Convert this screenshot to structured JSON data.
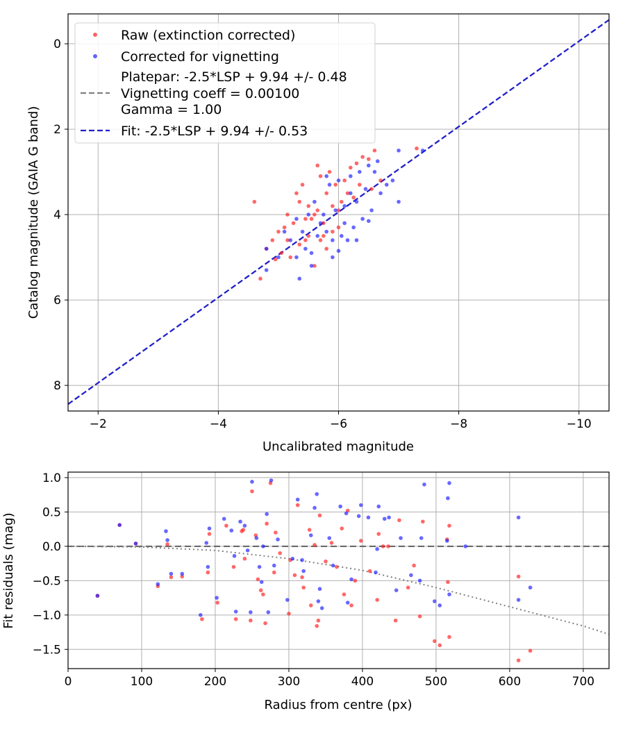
{
  "chart_data": [
    {
      "type": "scatter",
      "xlabel": "Uncalibrated magnitude",
      "ylabel": "Catalog magnitude (GAIA G band)",
      "x_inverted": true,
      "y_inverted": true,
      "xlim": [
        -1.5,
        -10.5
      ],
      "ylim": [
        8.6,
        -0.7
      ],
      "xticks": [
        -2,
        -4,
        -6,
        -8,
        -10
      ],
      "xtick_labels": [
        "−2",
        "−4",
        "−6",
        "−8",
        "−10"
      ],
      "yticks": [
        0,
        2,
        4,
        6,
        8
      ],
      "ytick_labels": [
        "0",
        "2",
        "4",
        "6",
        "8"
      ],
      "grid": true,
      "legend_position": "top-left",
      "legend": {
        "raw": "Raw (extinction corrected)",
        "corrected": "Corrected for vignetting",
        "platepar_line1": "Platepar: -2.5*LSP + 9.94 +/- 0.48",
        "platepar_line2": "Vignetting coeff = 0.00100",
        "platepar_line3": "Gamma = 1.00",
        "fit": "Fit: -2.5*LSP + 9.94 +/- 0.53"
      },
      "lines": [
        {
          "name": "Platepar",
          "slope": 1.0,
          "intercept": 9.94,
          "color": "#808080",
          "style": "dashed"
        },
        {
          "name": "Fit",
          "slope": 1.0,
          "intercept": 9.94,
          "color": "#2020d0",
          "style": "dashed"
        }
      ],
      "series": [
        {
          "name": "Raw (extinction corrected)",
          "color": "#ff2020",
          "points": [
            [
              -4.6,
              3.7
            ],
            [
              -4.8,
              4.8
            ],
            [
              -4.9,
              4.6
            ],
            [
              -5.0,
              4.4
            ],
            [
              -5.05,
              4.9
            ],
            [
              -5.1,
              4.3
            ],
            [
              -5.15,
              4.0
            ],
            [
              -5.2,
              5.0
            ],
            [
              -5.25,
              4.2
            ],
            [
              -5.3,
              3.5
            ],
            [
              -5.35,
              4.7
            ],
            [
              -5.4,
              3.3
            ],
            [
              -5.45,
              4.6
            ],
            [
              -5.5,
              3.8
            ],
            [
              -5.5,
              4.5
            ],
            [
              -5.55,
              4.1
            ],
            [
              -5.6,
              4.0
            ],
            [
              -5.6,
              5.2
            ],
            [
              -5.65,
              3.9
            ],
            [
              -5.7,
              3.1
            ],
            [
              -5.7,
              4.6
            ],
            [
              -5.75,
              4.2
            ],
            [
              -5.8,
              3.5
            ],
            [
              -5.8,
              4.8
            ],
            [
              -5.85,
              3.0
            ],
            [
              -5.9,
              4.4
            ],
            [
              -5.95,
              3.3
            ],
            [
              -6.0,
              3.9
            ],
            [
              -6.0,
              4.3
            ],
            [
              -6.05,
              3.7
            ],
            [
              -6.1,
              3.2
            ],
            [
              -6.15,
              3.5
            ],
            [
              -6.2,
              2.9
            ],
            [
              -6.25,
              3.6
            ],
            [
              -6.3,
              2.8
            ],
            [
              -6.35,
              3.3
            ],
            [
              -6.4,
              2.65
            ],
            [
              -6.5,
              2.7
            ],
            [
              -6.55,
              3.4
            ],
            [
              -6.6,
              2.5
            ],
            [
              -6.7,
              3.2
            ],
            [
              -7.3,
              2.45
            ],
            [
              -5.15,
              4.6
            ],
            [
              -5.35,
              3.7
            ],
            [
              -5.65,
              2.85
            ],
            [
              -5.9,
              3.8
            ],
            [
              -5.45,
              4.1
            ],
            [
              -5.75,
              4.5
            ],
            [
              -4.7,
              5.5
            ],
            [
              -4.95,
              5.05
            ]
          ]
        },
        {
          "name": "Corrected for vignetting",
          "color": "#2020ff",
          "points": [
            [
              -4.8,
              5.3
            ],
            [
              -5.0,
              5.0
            ],
            [
              -5.1,
              4.4
            ],
            [
              -5.2,
              4.6
            ],
            [
              -5.3,
              4.1
            ],
            [
              -5.35,
              5.5
            ],
            [
              -5.4,
              4.4
            ],
            [
              -5.45,
              4.8
            ],
            [
              -5.5,
              4.0
            ],
            [
              -5.55,
              4.9
            ],
            [
              -5.6,
              3.7
            ],
            [
              -5.65,
              4.5
            ],
            [
              -5.7,
              4.2
            ],
            [
              -5.75,
              4.0
            ],
            [
              -5.8,
              4.4
            ],
            [
              -5.85,
              3.3
            ],
            [
              -5.9,
              4.6
            ],
            [
              -5.95,
              3.9
            ],
            [
              -6.0,
              3.2
            ],
            [
              -6.05,
              4.5
            ],
            [
              -6.1,
              3.8
            ],
            [
              -6.15,
              4.6
            ],
            [
              -6.2,
              3.5
            ],
            [
              -6.25,
              4.3
            ],
            [
              -6.3,
              3.7
            ],
            [
              -6.35,
              3.0
            ],
            [
              -6.4,
              4.1
            ],
            [
              -6.45,
              3.4
            ],
            [
              -6.5,
              2.85
            ],
            [
              -6.55,
              3.9
            ],
            [
              -6.6,
              3.0
            ],
            [
              -6.7,
              3.5
            ],
            [
              -6.8,
              3.3
            ],
            [
              -6.9,
              3.2
            ],
            [
              -7.0,
              3.7
            ],
            [
              -7.0,
              2.5
            ],
            [
              -7.4,
              2.5
            ],
            [
              -6.65,
              2.75
            ],
            [
              -6.1,
              4.2
            ],
            [
              -6.2,
              3.1
            ],
            [
              -5.55,
              5.2
            ],
            [
              -5.9,
              5.0
            ],
            [
              -6.3,
              4.6
            ],
            [
              -6.5,
              4.15
            ],
            [
              -5.3,
              5.0
            ],
            [
              -4.8,
              4.8
            ],
            [
              -5.8,
              3.1
            ],
            [
              -6.0,
              4.85
            ]
          ]
        }
      ]
    },
    {
      "type": "scatter",
      "xlabel": "Radius from centre (px)",
      "ylabel": "Fit residuals (mag)",
      "xlim": [
        0,
        735
      ],
      "ylim": [
        -1.78,
        1.08
      ],
      "xticks": [
        0,
        100,
        200,
        300,
        400,
        500,
        600,
        700
      ],
      "xtick_labels": [
        "0",
        "100",
        "200",
        "300",
        "400",
        "500",
        "600",
        "700"
      ],
      "yticks": [
        1.0,
        0.5,
        0.0,
        -0.5,
        -1.0,
        -1.5
      ],
      "ytick_labels": [
        "1.0",
        "0.5",
        "0.0",
        "−0.5",
        "−1.0",
        "−1.5"
      ],
      "grid": true,
      "reference_lines": [
        {
          "name": "zero",
          "y": 0.0,
          "color": "#606060",
          "style": "dashed"
        },
        {
          "name": "vignetting model",
          "color": "#808080",
          "style": "dotted",
          "points": [
            [
              0,
              0.0
            ],
            [
              100,
              -0.01
            ],
            [
              200,
              -0.06
            ],
            [
              300,
              -0.18
            ],
            [
              400,
              -0.35
            ],
            [
              500,
              -0.6
            ],
            [
              600,
              -0.88
            ],
            [
              700,
              -1.16
            ],
            [
              735,
              -1.28
            ]
          ]
        }
      ],
      "series": [
        {
          "name": "Raw (extinction corrected)",
          "color": "#ff2020",
          "points": [
            [
              40,
              -0.72
            ],
            [
              70,
              0.31
            ],
            [
              92,
              0.04
            ],
            [
              122,
              -0.58
            ],
            [
              135,
              0.03
            ],
            [
              140,
              -0.45
            ],
            [
              155,
              -0.44
            ],
            [
              182,
              -1.06
            ],
            [
              190,
              -0.38
            ],
            [
              192,
              0.18
            ],
            [
              203,
              -0.82
            ],
            [
              215,
              0.3
            ],
            [
              225,
              -0.3
            ],
            [
              228,
              -1.06
            ],
            [
              236,
              0.22
            ],
            [
              240,
              -0.18
            ],
            [
              248,
              -1.08
            ],
            [
              250,
              0.8
            ],
            [
              255,
              0.16
            ],
            [
              258,
              -0.48
            ],
            [
              262,
              -0.64
            ],
            [
              265,
              -0.7
            ],
            [
              268,
              -1.12
            ],
            [
              270,
              0.33
            ],
            [
              275,
              0.92
            ],
            [
              280,
              -0.38
            ],
            [
              282,
              0.2
            ],
            [
              288,
              -0.1
            ],
            [
              300,
              -0.98
            ],
            [
              302,
              -0.2
            ],
            [
              308,
              -0.42
            ],
            [
              312,
              0.6
            ],
            [
              318,
              -0.45
            ],
            [
              320,
              -0.6
            ],
            [
              328,
              0.24
            ],
            [
              330,
              -0.86
            ],
            [
              335,
              0.02
            ],
            [
              338,
              -1.16
            ],
            [
              340,
              -1.08
            ],
            [
              342,
              0.45
            ],
            [
              350,
              -0.22
            ],
            [
              358,
              0.05
            ],
            [
              365,
              -0.3
            ],
            [
              372,
              0.26
            ],
            [
              375,
              -0.7
            ],
            [
              380,
              0.52
            ],
            [
              385,
              -0.86
            ],
            [
              390,
              -0.5
            ],
            [
              398,
              0.08
            ],
            [
              410,
              -0.36
            ],
            [
              420,
              -0.78
            ],
            [
              422,
              0.18
            ],
            [
              428,
              0.0
            ],
            [
              435,
              0.0
            ],
            [
              445,
              -1.08
            ],
            [
              450,
              0.38
            ],
            [
              462,
              -0.6
            ],
            [
              470,
              -0.28
            ],
            [
              478,
              -1.02
            ],
            [
              482,
              0.36
            ],
            [
              498,
              -1.38
            ],
            [
              505,
              -1.44
            ],
            [
              515,
              0.1
            ],
            [
              516,
              -0.52
            ],
            [
              518,
              -1.32
            ],
            [
              518,
              0.3
            ],
            [
              612,
              -0.44
            ],
            [
              628,
              -1.52
            ],
            [
              612,
              -1.66
            ],
            [
              238,
              0.24
            ]
          ]
        },
        {
          "name": "Corrected for vignetting",
          "color": "#2020ff",
          "points": [
            [
              40,
              -0.72
            ],
            [
              70,
              0.31
            ],
            [
              92,
              0.04
            ],
            [
              122,
              -0.55
            ],
            [
              133,
              0.22
            ],
            [
              135,
              0.09
            ],
            [
              140,
              -0.4
            ],
            [
              155,
              -0.4
            ],
            [
              180,
              -1.0
            ],
            [
              188,
              0.05
            ],
            [
              190,
              -0.3
            ],
            [
              192,
              0.26
            ],
            [
              202,
              -0.75
            ],
            [
              212,
              0.4
            ],
            [
              222,
              0.23
            ],
            [
              226,
              -0.14
            ],
            [
              228,
              -0.95
            ],
            [
              234,
              0.36
            ],
            [
              240,
              0.3
            ],
            [
              244,
              -0.06
            ],
            [
              248,
              -0.96
            ],
            [
              250,
              0.94
            ],
            [
              256,
              0.12
            ],
            [
              260,
              -0.3
            ],
            [
              263,
              -0.52
            ],
            [
              265,
              0.0
            ],
            [
              270,
              0.47
            ],
            [
              272,
              -0.96
            ],
            [
              276,
              0.96
            ],
            [
              280,
              -0.28
            ],
            [
              285,
              0.1
            ],
            [
              298,
              -0.78
            ],
            [
              305,
              -0.18
            ],
            [
              312,
              0.68
            ],
            [
              318,
              -0.2
            ],
            [
              320,
              -0.36
            ],
            [
              330,
              0.16
            ],
            [
              335,
              0.56
            ],
            [
              338,
              0.76
            ],
            [
              340,
              -0.8
            ],
            [
              342,
              -0.62
            ],
            [
              345,
              -0.9
            ],
            [
              355,
              0.12
            ],
            [
              360,
              -0.28
            ],
            [
              370,
              0.58
            ],
            [
              378,
              0.48
            ],
            [
              380,
              -0.82
            ],
            [
              385,
              -0.48
            ],
            [
              395,
              0.44
            ],
            [
              398,
              0.6
            ],
            [
              408,
              0.42
            ],
            [
              418,
              -0.38
            ],
            [
              420,
              -0.04
            ],
            [
              422,
              0.58
            ],
            [
              430,
              0.4
            ],
            [
              436,
              0.42
            ],
            [
              446,
              -0.64
            ],
            [
              452,
              0.12
            ],
            [
              466,
              -0.42
            ],
            [
              478,
              -0.5
            ],
            [
              480,
              0.12
            ],
            [
              484,
              0.9
            ],
            [
              498,
              -0.8
            ],
            [
              505,
              -0.86
            ],
            [
              515,
              0.08
            ],
            [
              516,
              0.7
            ],
            [
              518,
              -0.7
            ],
            [
              518,
              0.92
            ],
            [
              540,
              0.0
            ],
            [
              612,
              0.42
            ],
            [
              628,
              -0.6
            ],
            [
              612,
              -0.78
            ]
          ]
        }
      ]
    }
  ]
}
